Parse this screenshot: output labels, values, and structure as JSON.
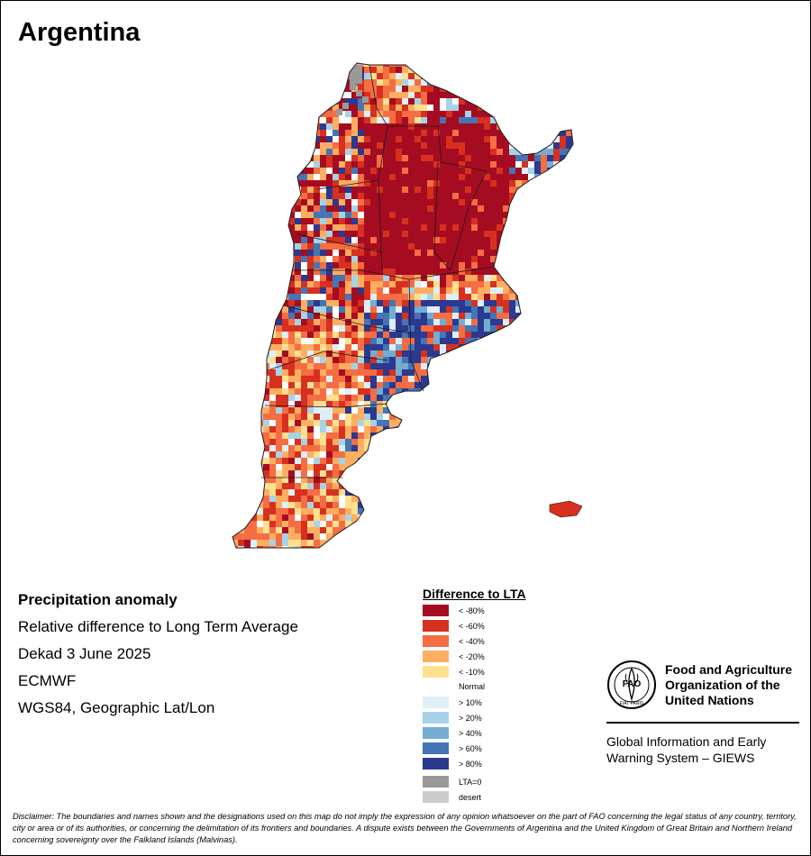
{
  "map": {
    "title": "Argentina",
    "info_lines": [
      "Precipitation anomaly",
      "Relative difference to Long Term Average",
      "Dekad 3 June 2025",
      "ECMWF",
      "WGS84, Geographic Lat/Lon"
    ],
    "legend": {
      "title": "Difference to LTA",
      "items": [
        {
          "label": "< -80%",
          "color": "#a50c21"
        },
        {
          "label": "< -60%",
          "color": "#d7301f"
        },
        {
          "label": "< -40%",
          "color": "#f46d43"
        },
        {
          "label": "< -20%",
          "color": "#fdae61"
        },
        {
          "label": "< -10%",
          "color": "#fee090"
        },
        {
          "label": "Normal",
          "color": "#ffffff"
        },
        {
          "label": "> 10%",
          "color": "#deeff7"
        },
        {
          "label": "> 20%",
          "color": "#a6d3e8"
        },
        {
          "label": "> 40%",
          "color": "#74add1"
        },
        {
          "label": "> 60%",
          "color": "#4575b4"
        },
        {
          "label": "> 80%",
          "color": "#2b3990"
        }
      ],
      "extra": [
        {
          "label": "LTA=0",
          "color": "#999999"
        },
        {
          "label": "desert",
          "color": "#cccccc"
        }
      ]
    }
  },
  "org": {
    "logo_text": "FAO",
    "logo_motto": "FIAT PANIS",
    "name": "Food and Agriculture Organization of the United Nations",
    "system": "Global Information and Early Warning System – GIEWS"
  },
  "disclaimer": "Disclaimer: The boundaries and names shown and the designations used on this map do not imply the expression of any opinion whatsoever on the part of FAO concerning the legal status of any country, territory, city or area or of its authorities, or concerning the delimitation of its frontiers and boundaries. A dispute exists between the Governments of Argentina and the United Kingdom of Great Britain and Northern Ireland concerning sovereignty over the Falkland Islands (Malvinas)."
}
